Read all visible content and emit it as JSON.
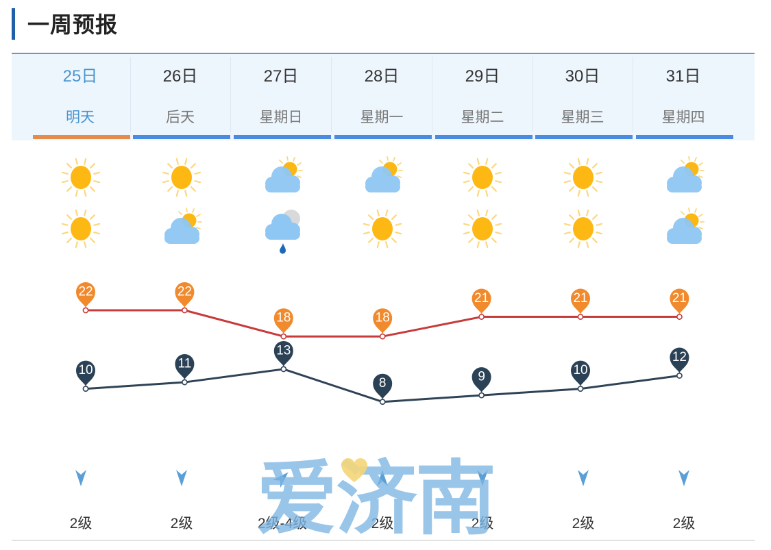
{
  "header": {
    "title": "一周预报"
  },
  "days": [
    {
      "date": "25日",
      "label": "明天",
      "day_icon": "sunny",
      "night_icon": "sunny",
      "wind_direction": "north",
      "wind_rotation": 0,
      "wind": "2级",
      "selected": true
    },
    {
      "date": "26日",
      "label": "后天",
      "day_icon": "sunny",
      "night_icon": "partly-cloudy",
      "wind_direction": "north",
      "wind_rotation": 0,
      "wind": "2级",
      "selected": false
    },
    {
      "date": "27日",
      "label": "星期日",
      "day_icon": "partly-cloudy",
      "night_icon": "rain",
      "wind_direction": "southwest",
      "wind_rotation": 225,
      "wind": "2级-4级",
      "selected": false
    },
    {
      "date": "28日",
      "label": "星期一",
      "day_icon": "partly-cloudy",
      "night_icon": "sunny",
      "wind_direction": "south",
      "wind_rotation": 180,
      "wind": "2级",
      "selected": false
    },
    {
      "date": "29日",
      "label": "星期二",
      "day_icon": "sunny",
      "night_icon": "sunny",
      "wind_direction": "north",
      "wind_rotation": 0,
      "wind": "2级",
      "selected": false
    },
    {
      "date": "30日",
      "label": "星期三",
      "day_icon": "sunny",
      "night_icon": "sunny",
      "wind_direction": "north",
      "wind_rotation": 0,
      "wind": "2级",
      "selected": false
    },
    {
      "date": "31日",
      "label": "星期四",
      "day_icon": "partly-cloudy",
      "night_icon": "partly-cloudy",
      "wind_direction": "north",
      "wind_rotation": 0,
      "wind": "2级",
      "selected": false
    }
  ],
  "colors": {
    "accent_blue": "#4a8be0",
    "selected_orange": "#e58c4d",
    "high_line": "#c73b3b",
    "high_pin": "#f08a2c",
    "low_line": "#2f4356",
    "low_pin": "#2b4155",
    "wind_arrow": "#5b9fd6"
  },
  "chart_data": {
    "type": "line",
    "categories": [
      "25日",
      "26日",
      "27日",
      "28日",
      "29日",
      "30日",
      "31日"
    ],
    "series": [
      {
        "name": "high",
        "values": [
          22,
          22,
          18,
          18,
          21,
          21,
          21
        ]
      },
      {
        "name": "low",
        "values": [
          10,
          11,
          13,
          8,
          9,
          10,
          12
        ]
      }
    ],
    "title": "",
    "xlabel": "",
    "ylabel": "",
    "grid": false
  },
  "watermark": {
    "text": "爱济南"
  }
}
